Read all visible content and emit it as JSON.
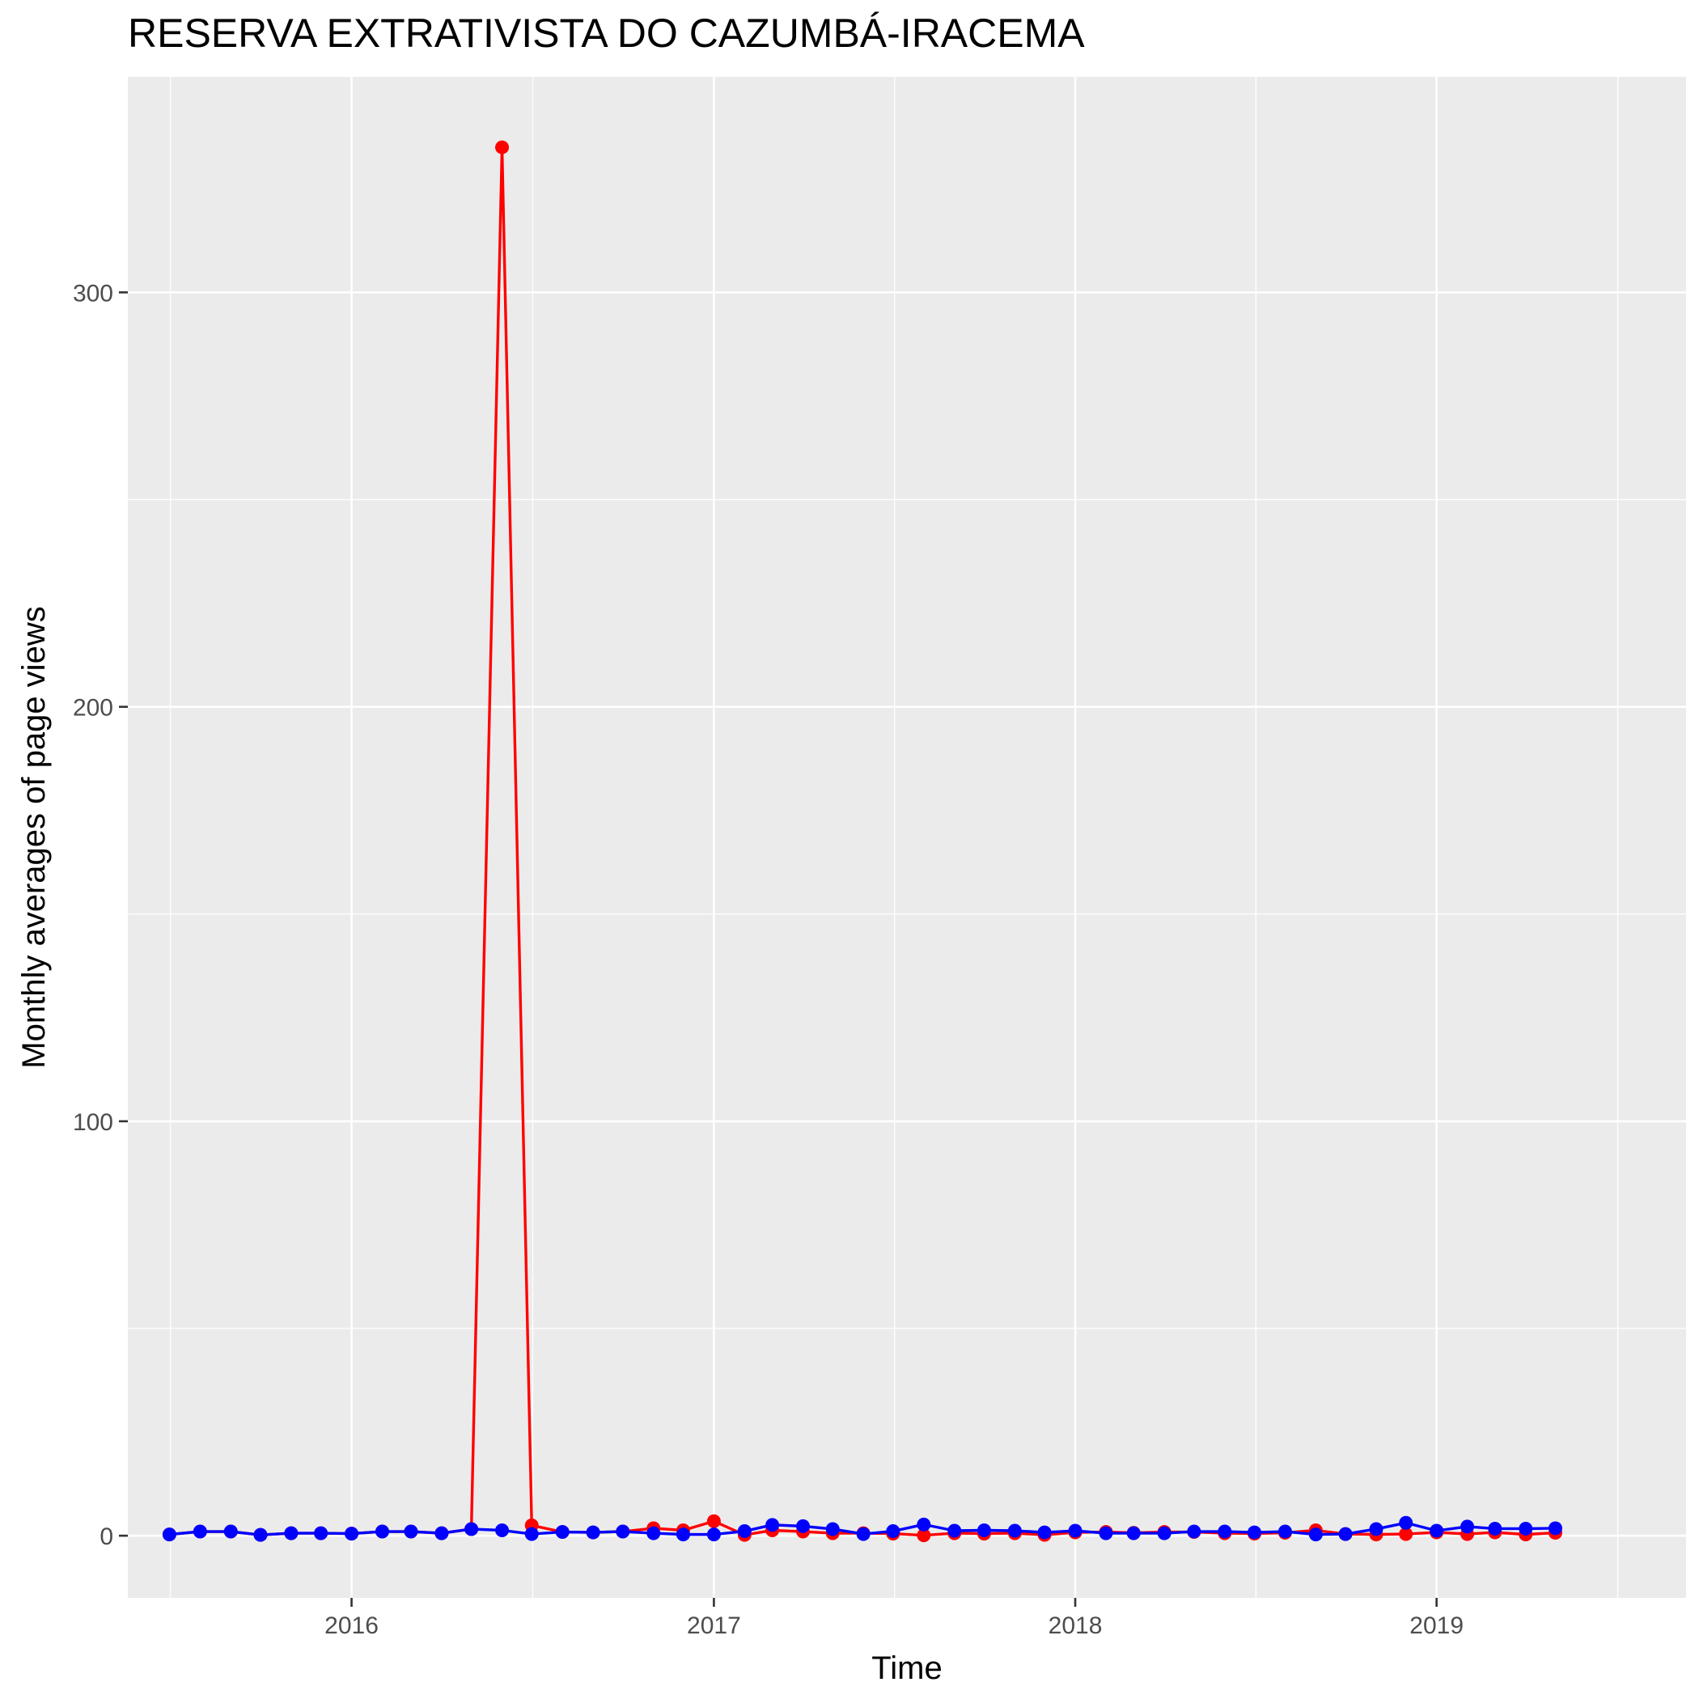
{
  "chart_data": {
    "type": "line",
    "title": "RESERVA EXTRATIVISTA DO CAZUMBÁ-IRACEMA",
    "xlabel": "Time",
    "ylabel": "Monthly averages of page views",
    "xlim": [
      "2015-05-20",
      "2019-09-10"
    ],
    "ylim": [
      -15,
      352
    ],
    "x_ticks": [
      "2016-01-01",
      "2017-01-01",
      "2018-01-01",
      "2019-01-01"
    ],
    "x_tick_labels": [
      "2016",
      "2017",
      "2018",
      "2019"
    ],
    "y_ticks": [
      0,
      100,
      200,
      300
    ],
    "y_tick_labels": [
      "0",
      "100",
      "200",
      "300"
    ],
    "grid": true,
    "legend": "none",
    "colors": {
      "panel": "#ebebeb",
      "grid": "#ffffff",
      "series_1": "#ff0000",
      "series_2": "#0000ff"
    },
    "x": [
      "2015-07-01",
      "2015-08-01",
      "2015-09-01",
      "2015-10-01",
      "2015-11-01",
      "2015-12-01",
      "2016-01-01",
      "2016-02-01",
      "2016-03-01",
      "2016-04-01",
      "2016-05-01",
      "2016-06-01",
      "2016-07-01",
      "2016-08-01",
      "2016-09-01",
      "2016-10-01",
      "2016-11-01",
      "2016-12-01",
      "2017-01-01",
      "2017-02-01",
      "2017-03-01",
      "2017-04-01",
      "2017-05-01",
      "2017-06-01",
      "2017-07-01",
      "2017-08-01",
      "2017-09-01",
      "2017-10-01",
      "2017-11-01",
      "2017-12-01",
      "2018-01-01",
      "2018-02-01",
      "2018-03-01",
      "2018-04-01",
      "2018-05-01",
      "2018-06-01",
      "2018-07-01",
      "2018-08-01",
      "2018-09-01",
      "2018-10-01",
      "2018-11-01",
      "2018-12-01",
      "2019-01-01",
      "2019-02-01",
      "2019-03-01",
      "2019-04-01",
      "2019-05-01"
    ],
    "series": [
      {
        "values": [
          0.3,
          1.0,
          1.0,
          0.2,
          0.6,
          0.6,
          0.5,
          1.0,
          1.0,
          0.6,
          1.6,
          335.0,
          2.5,
          0.9,
          0.8,
          1.0,
          1.8,
          1.3,
          3.5,
          0.2,
          1.3,
          1.0,
          0.6,
          0.6,
          0.5,
          0.1,
          0.6,
          0.5,
          0.6,
          0.2,
          0.8,
          0.9,
          0.7,
          0.9,
          0.9,
          0.6,
          0.5,
          0.7,
          1.3,
          0.4,
          0.3,
          0.4,
          0.8,
          0.4,
          0.8,
          0.3,
          0.7
        ]
      },
      {
        "values": [
          0.3,
          1.0,
          1.0,
          0.2,
          0.6,
          0.6,
          0.5,
          1.0,
          1.0,
          0.6,
          1.6,
          1.3,
          0.4,
          0.9,
          0.8,
          1.0,
          0.6,
          0.3,
          0.3,
          1.1,
          2.6,
          2.3,
          1.6,
          0.4,
          1.1,
          2.7,
          1.2,
          1.3,
          1.2,
          0.8,
          1.2,
          0.6,
          0.6,
          0.6,
          1.0,
          1.0,
          0.8,
          1.0,
          0.3,
          0.4,
          1.6,
          3.1,
          1.2,
          2.2,
          1.7,
          1.7,
          1.8
        ]
      }
    ]
  }
}
